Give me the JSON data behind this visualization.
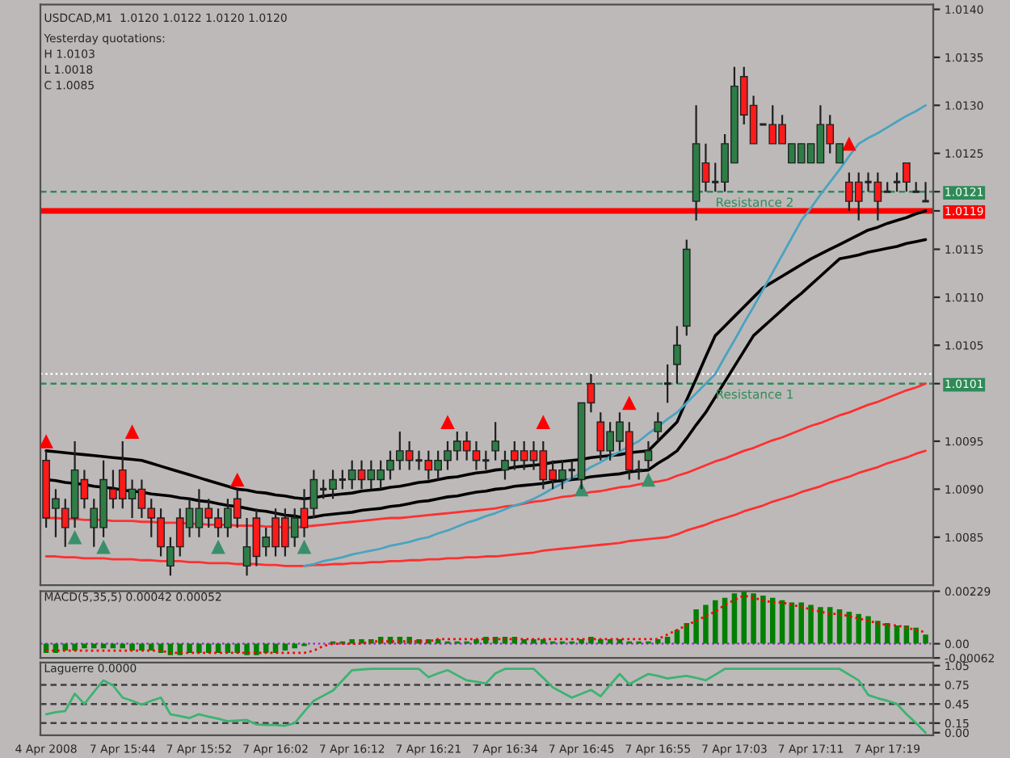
{
  "chart_data": [
    {
      "type": "candlestick",
      "title": "USDCAD,M1  1.0120 1.0122 1.0120 1.0120",
      "annotations": [
        "Yesterday quotations:",
        "H 1.0103",
        "L 1.0018",
        "C 1.0085"
      ],
      "categories": [
        null,
        null,
        null,
        null,
        null,
        null,
        null,
        null,
        null,
        null,
        null,
        null,
        null,
        null,
        null,
        null,
        null,
        null,
        null,
        null,
        null,
        null,
        null,
        null,
        null,
        null,
        null,
        null,
        null,
        null,
        null,
        null,
        null,
        null,
        null,
        null,
        null,
        null,
        null,
        null,
        null,
        null,
        null,
        null,
        null,
        null,
        null,
        null,
        null,
        null,
        null,
        null,
        null,
        null,
        null,
        null,
        null,
        null,
        null,
        null,
        null,
        null,
        null,
        null,
        null,
        null,
        null,
        null,
        null,
        null,
        null,
        null,
        null,
        null,
        null,
        null,
        null,
        null,
        null,
        null,
        null,
        null,
        null,
        null,
        null,
        null,
        null,
        null,
        null,
        null,
        null,
        null,
        null
      ],
      "ohlc": [
        [
          1.0093,
          1.0094,
          1.0086,
          1.0087
        ],
        [
          1.0088,
          1.009,
          1.0085,
          1.0089
        ],
        [
          1.0088,
          1.0089,
          1.0084,
          1.0086
        ],
        [
          1.0087,
          1.0095,
          1.0086,
          1.0092
        ],
        [
          1.0091,
          1.0092,
          1.0088,
          1.0089
        ],
        [
          1.0086,
          1.0089,
          1.0084,
          1.0088
        ],
        [
          1.0086,
          1.0093,
          1.0085,
          1.0091
        ],
        [
          1.009,
          1.0092,
          1.0088,
          1.0089
        ],
        [
          1.0092,
          1.0095,
          1.0088,
          1.0089
        ],
        [
          1.0089,
          1.0091,
          1.0087,
          1.009
        ],
        [
          1.009,
          1.0091,
          1.0087,
          1.0088
        ],
        [
          1.0088,
          1.0089,
          1.0085,
          1.0087
        ],
        [
          1.0087,
          1.0088,
          1.0083,
          1.0084
        ],
        [
          1.0082,
          1.0085,
          1.0081,
          1.0084
        ],
        [
          1.0087,
          1.0088,
          1.0083,
          1.0084
        ],
        [
          1.0086,
          1.0089,
          1.0085,
          1.0088
        ],
        [
          1.0086,
          1.009,
          1.0085,
          1.0088
        ],
        [
          1.0088,
          1.0089,
          1.0086,
          1.0087
        ],
        [
          1.0087,
          1.0088,
          1.0085,
          1.0086
        ],
        [
          1.0086,
          1.0089,
          1.0085,
          1.0088
        ],
        [
          1.0089,
          1.009,
          1.0086,
          1.0087
        ],
        [
          1.0082,
          1.0087,
          1.0081,
          1.0084
        ],
        [
          1.0087,
          1.0088,
          1.0082,
          1.0083
        ],
        [
          1.0084,
          1.0086,
          1.0083,
          1.0085
        ],
        [
          1.0087,
          1.0088,
          1.0083,
          1.0084
        ],
        [
          1.0087,
          1.0088,
          1.0083,
          1.0084
        ],
        [
          1.0085,
          1.0088,
          1.0084,
          1.0087
        ],
        [
          1.0088,
          1.009,
          1.0085,
          1.0086
        ],
        [
          1.0088,
          1.0092,
          1.0087,
          1.0091
        ],
        [
          1.009,
          1.0091,
          1.0089,
          1.009
        ],
        [
          1.009,
          1.0092,
          1.0089,
          1.0091
        ],
        [
          1.0091,
          1.0092,
          1.009,
          1.0091
        ],
        [
          1.0091,
          1.0093,
          1.009,
          1.0092
        ],
        [
          1.0092,
          1.0093,
          1.009,
          1.0091
        ],
        [
          1.0091,
          1.0093,
          1.009,
          1.0092
        ],
        [
          1.0091,
          1.0093,
          1.009,
          1.0092
        ],
        [
          1.0092,
          1.0094,
          1.0091,
          1.0093
        ],
        [
          1.0093,
          1.0096,
          1.0092,
          1.0094
        ],
        [
          1.0094,
          1.0095,
          1.0092,
          1.0093
        ],
        [
          1.0093,
          1.0094,
          1.0092,
          1.0093
        ],
        [
          1.0093,
          1.0094,
          1.0091,
          1.0092
        ],
        [
          1.0092,
          1.0094,
          1.0091,
          1.0093
        ],
        [
          1.0093,
          1.0095,
          1.0092,
          1.0094
        ],
        [
          1.0094,
          1.0096,
          1.0093,
          1.0095
        ],
        [
          1.0095,
          1.0096,
          1.0093,
          1.0094
        ],
        [
          1.0094,
          1.0095,
          1.0092,
          1.0093
        ],
        [
          1.0093,
          1.0094,
          1.0092,
          1.0093
        ],
        [
          1.0094,
          1.0097,
          1.0093,
          1.0095
        ],
        [
          1.0092,
          1.0094,
          1.0091,
          1.0093
        ],
        [
          1.0094,
          1.0095,
          1.0092,
          1.0093
        ],
        [
          1.0094,
          1.0095,
          1.0092,
          1.0093
        ],
        [
          1.0094,
          1.0095,
          1.0092,
          1.0093
        ],
        [
          1.0094,
          1.0095,
          1.009,
          1.0091
        ],
        [
          1.0092,
          1.0093,
          1.009,
          1.0091
        ],
        [
          1.0091,
          1.0093,
          1.009,
          1.0092
        ],
        [
          1.0092,
          1.0093,
          1.0091,
          1.0092
        ],
        [
          1.0091,
          1.0099,
          1.009,
          1.0099
        ],
        [
          1.0101,
          1.0102,
          1.0098,
          1.0099
        ],
        [
          1.0097,
          1.0098,
          1.0093,
          1.0094
        ],
        [
          1.0094,
          1.0097,
          1.0093,
          1.0096
        ],
        [
          1.0095,
          1.0098,
          1.0094,
          1.0097
        ],
        [
          1.0096,
          1.0097,
          1.0091,
          1.0092
        ],
        [
          1.0092,
          1.0093,
          1.0091,
          1.0092
        ],
        [
          1.0093,
          1.0095,
          1.0092,
          1.0094
        ],
        [
          1.0096,
          1.0098,
          1.0095,
          1.0097
        ],
        [
          1.0101,
          1.0103,
          1.0099,
          1.0101
        ],
        [
          1.0103,
          1.0107,
          1.0101,
          1.0105
        ],
        [
          1.0107,
          1.0116,
          1.0106,
          1.0115
        ],
        [
          1.012,
          1.013,
          1.0118,
          1.0126
        ],
        [
          1.0124,
          1.0126,
          1.0121,
          1.0122
        ],
        [
          1.0122,
          1.0124,
          1.0121,
          1.0122
        ],
        [
          1.0122,
          1.0127,
          1.0121,
          1.0126
        ],
        [
          1.0124,
          1.0134,
          1.0124,
          1.0132
        ],
        [
          1.0133,
          1.0134,
          1.0128,
          1.0129
        ],
        [
          1.013,
          1.0131,
          1.0126,
          1.0126
        ],
        [
          1.0128,
          1.0128,
          1.0128,
          1.0128
        ],
        [
          1.0128,
          1.013,
          1.0126,
          1.0126
        ],
        [
          1.0128,
          1.0129,
          1.0126,
          1.0126
        ],
        [
          1.0124,
          1.0126,
          1.0124,
          1.0126
        ],
        [
          1.0124,
          1.0126,
          1.0124,
          1.0126
        ],
        [
          1.0124,
          1.0126,
          1.0124,
          1.0126
        ],
        [
          1.0124,
          1.013,
          1.0124,
          1.0128
        ],
        [
          1.0128,
          1.0129,
          1.0125,
          1.0126
        ],
        [
          1.0124,
          1.0126,
          1.0124,
          1.0126
        ],
        [
          1.0122,
          1.0123,
          1.0119,
          1.012
        ],
        [
          1.0122,
          1.0123,
          1.0118,
          1.012
        ],
        [
          1.0122,
          1.0123,
          1.0121,
          1.0122
        ],
        [
          1.0122,
          1.0123,
          1.0118,
          1.012
        ],
        [
          1.0121,
          1.0122,
          1.0121,
          1.0121
        ],
        [
          1.0122,
          1.0123,
          1.0121,
          1.0122
        ],
        [
          1.0124,
          1.0124,
          1.0121,
          1.0122
        ],
        [
          1.0121,
          1.0122,
          1.0121,
          1.0121
        ],
        [
          1.012,
          1.0122,
          1.012,
          1.012
        ]
      ],
      "series": [
        {
          "type": "line",
          "color": "#ff3030",
          "values": [
            1.0083,
            1.0083,
            1.00829,
            1.00829,
            1.00828,
            1.00828,
            1.00828,
            1.00827,
            1.00827,
            1.00827,
            1.00826,
            1.00826,
            1.00825,
            1.00825,
            1.00825,
            1.00824,
            1.00824,
            1.00823,
            1.00823,
            1.00823,
            1.00822,
            1.00822,
            1.00822,
            1.00821,
            1.00821,
            1.0082,
            1.0082,
            1.0082,
            1.00821,
            1.00821,
            1.00822,
            1.00822,
            1.00823,
            1.00823,
            1.00824,
            1.00824,
            1.00825,
            1.00825,
            1.00826,
            1.00826,
            1.00827,
            1.00827,
            1.00828,
            1.00828,
            1.00829,
            1.00829,
            1.0083,
            1.0083,
            1.00831,
            1.00832,
            1.00833,
            1.00834,
            1.00836,
            1.00837,
            1.00838,
            1.00839,
            1.0084,
            1.00841,
            1.00842,
            1.00843,
            1.00844,
            1.00846,
            1.00847,
            1.00848,
            1.00849,
            1.0085,
            1.00853,
            1.00857,
            1.0086,
            1.00863,
            1.00867,
            1.0087,
            1.00873,
            1.00877,
            1.0088,
            1.00883,
            1.00887,
            1.0089,
            1.00893,
            1.00897,
            1.009,
            1.00903,
            1.00907,
            1.0091,
            1.00913,
            1.00917,
            1.0092,
            1.00923,
            1.00927,
            1.0093,
            1.00933,
            1.00937,
            1.0094
          ]
        },
        {
          "type": "line",
          "color": "#ff3030",
          "values": [
            1.0087,
            1.0087,
            1.00869,
            1.00869,
            1.00868,
            1.00868,
            1.00868,
            1.00867,
            1.00867,
            1.00867,
            1.00866,
            1.00866,
            1.00865,
            1.00865,
            1.00865,
            1.00864,
            1.00864,
            1.00863,
            1.00863,
            1.00863,
            1.00862,
            1.00862,
            1.00862,
            1.00861,
            1.00861,
            1.0086,
            1.0086,
            1.00861,
            1.00862,
            1.00863,
            1.00864,
            1.00865,
            1.00866,
            1.00867,
            1.00868,
            1.00869,
            1.0087,
            1.0087,
            1.00871,
            1.00872,
            1.00873,
            1.00874,
            1.00875,
            1.00876,
            1.00877,
            1.00878,
            1.00879,
            1.0088,
            1.00882,
            1.00883,
            1.00885,
            1.00887,
            1.00888,
            1.0089,
            1.00892,
            1.00893,
            1.00895,
            1.00897,
            1.00898,
            1.009,
            1.00902,
            1.00903,
            1.00905,
            1.00907,
            1.00908,
            1.0091,
            1.00914,
            1.00917,
            1.00921,
            1.00925,
            1.00929,
            1.00932,
            1.00936,
            1.0094,
            1.00943,
            1.00947,
            1.00951,
            1.00954,
            1.00958,
            1.00962,
            1.00966,
            1.00969,
            1.00973,
            1.00977,
            1.0098,
            1.00984,
            1.00988,
            1.00991,
            1.00995,
            1.00999,
            1.01003,
            1.01006,
            1.0101
          ]
        },
        {
          "type": "line",
          "color": "#000000",
          "values": [
            1.0091,
            1.00909,
            1.00907,
            1.00906,
            1.00905,
            1.00903,
            1.00902,
            1.00901,
            1.00899,
            1.00898,
            1.00897,
            1.00895,
            1.00894,
            1.00893,
            1.00891,
            1.0089,
            1.00888,
            1.00887,
            1.00885,
            1.00883,
            1.00882,
            1.0088,
            1.00878,
            1.00877,
            1.00875,
            1.00873,
            1.00872,
            1.0087,
            1.00871,
            1.00873,
            1.00874,
            1.00875,
            1.00876,
            1.00878,
            1.00879,
            1.0088,
            1.00882,
            1.00883,
            1.00885,
            1.00887,
            1.00888,
            1.0089,
            1.00892,
            1.00893,
            1.00895,
            1.00897,
            1.00898,
            1.009,
            1.00901,
            1.00903,
            1.00904,
            1.00905,
            1.00906,
            1.00908,
            1.00909,
            1.0091,
            1.00911,
            1.00913,
            1.00914,
            1.00915,
            1.00916,
            1.00918,
            1.00919,
            1.0092,
            1.00927,
            1.00933,
            1.0094,
            1.00953,
            1.00967,
            1.0098,
            1.00996,
            1.01012,
            1.01028,
            1.01044,
            1.0106,
            1.01069,
            1.01078,
            1.01087,
            1.01096,
            1.01104,
            1.01113,
            1.01122,
            1.01131,
            1.0114,
            1.01142,
            1.01144,
            1.01147,
            1.01149,
            1.01151,
            1.01153,
            1.01156,
            1.01158,
            1.0116
          ]
        },
        {
          "type": "line",
          "color": "#000000",
          "values": [
            1.0094,
            1.00939,
            1.00938,
            1.00937,
            1.00936,
            1.00935,
            1.00934,
            1.00933,
            1.00932,
            1.00931,
            1.0093,
            1.00927,
            1.00924,
            1.00921,
            1.00918,
            1.00915,
            1.00912,
            1.00909,
            1.00906,
            1.00903,
            1.009,
            1.00899,
            1.00897,
            1.00896,
            1.00894,
            1.00893,
            1.00891,
            1.0089,
            1.00891,
            1.00893,
            1.00894,
            1.00895,
            1.00896,
            1.00898,
            1.00899,
            1.009,
            1.00902,
            1.00903,
            1.00905,
            1.00907,
            1.00908,
            1.0091,
            1.00912,
            1.00913,
            1.00915,
            1.00917,
            1.00918,
            1.0092,
            1.00921,
            1.00923,
            1.00924,
            1.00925,
            1.00926,
            1.00928,
            1.00929,
            1.0093,
            1.00931,
            1.00933,
            1.00934,
            1.00935,
            1.00936,
            1.00938,
            1.00939,
            1.0094,
            1.0095,
            1.0096,
            1.0097,
            1.00993,
            1.01015,
            1.01038,
            1.0106,
            1.0107,
            1.0108,
            1.0109,
            1.011,
            1.0111,
            1.01116,
            1.01122,
            1.01128,
            1.01134,
            1.0114,
            1.01145,
            1.0115,
            1.01155,
            1.0116,
            1.01165,
            1.0117,
            1.01173,
            1.01177,
            1.0118,
            1.01183,
            1.01187,
            1.0119
          ]
        },
        {
          "type": "line",
          "color": "#4aa3c0",
          "values": [
            null,
            null,
            null,
            null,
            null,
            null,
            null,
            null,
            null,
            null,
            null,
            null,
            null,
            null,
            null,
            null,
            null,
            null,
            null,
            null,
            null,
            null,
            null,
            null,
            null,
            null,
            null,
            1.0082,
            1.00822,
            1.00825,
            1.00827,
            1.00829,
            1.00832,
            1.00834,
            1.00836,
            1.00838,
            1.00841,
            1.00843,
            1.00845,
            1.00848,
            1.0085,
            1.00854,
            1.00857,
            1.00861,
            1.00865,
            1.00868,
            1.00872,
            1.00875,
            1.00879,
            1.00883,
            1.00886,
            1.0089,
            1.00895,
            1.00901,
            1.00906,
            1.00912,
            1.00917,
            1.00923,
            1.00928,
            1.00934,
            1.00939,
            1.00945,
            1.0095,
            1.00958,
            1.00965,
            1.00973,
            1.0098,
            1.0099,
            1.01,
            1.0101,
            1.0102,
            1.01038,
            1.01055,
            1.01073,
            1.0109,
            1.01108,
            1.01126,
            1.01144,
            1.01162,
            1.0118,
            1.01193,
            1.01207,
            1.0122,
            1.01233,
            1.01247,
            1.0126,
            1.01266,
            1.01271,
            1.01277,
            1.01283,
            1.01289,
            1.01294,
            1.013
          ]
        },
        {
          "type": "scatter",
          "color": "#ff0000",
          "marker": "triangle",
          "values": [
            1.0095,
            null,
            null,
            null,
            null,
            null,
            null,
            null,
            null,
            1.0096,
            null,
            null,
            null,
            null,
            null,
            null,
            null,
            null,
            null,
            null,
            1.0091,
            null,
            null,
            null,
            null,
            null,
            null,
            null,
            null,
            null,
            null,
            null,
            null,
            null,
            null,
            null,
            null,
            null,
            null,
            null,
            null,
            null,
            1.0097,
            null,
            null,
            null,
            null,
            null,
            null,
            null,
            null,
            null,
            1.0097,
            null,
            null,
            null,
            null,
            null,
            null,
            null,
            null,
            1.0099,
            null,
            null,
            null,
            null,
            null,
            null,
            null,
            null,
            null,
            null,
            null,
            null,
            null,
            null,
            null,
            null,
            null,
            null,
            null,
            null,
            null,
            null,
            1.0126,
            null,
            null,
            null,
            null,
            null,
            null,
            null,
            null
          ]
        },
        {
          "type": "scatter",
          "color": "#3a8f6a",
          "marker": "triangle",
          "values": [
            null,
            null,
            null,
            1.0085,
            null,
            null,
            1.0084,
            null,
            null,
            null,
            null,
            null,
            null,
            null,
            null,
            null,
            null,
            null,
            1.0084,
            null,
            null,
            null,
            null,
            null,
            null,
            null,
            null,
            1.0084,
            null,
            null,
            null,
            null,
            null,
            null,
            null,
            null,
            null,
            null,
            null,
            null,
            null,
            null,
            null,
            null,
            null,
            null,
            null,
            null,
            null,
            null,
            null,
            null,
            null,
            null,
            null,
            null,
            1.009,
            null,
            null,
            null,
            null,
            null,
            null,
            1.0091,
            null,
            null,
            null,
            null,
            null,
            null,
            null,
            null,
            null,
            null,
            null,
            null,
            null,
            null,
            null,
            null,
            null,
            null,
            null,
            null,
            null,
            null,
            null,
            null,
            null,
            null,
            null,
            null,
            null
          ]
        }
      ],
      "ref_lines": [
        {
          "axis": "y",
          "value": 1.0102,
          "color": "#ffffff",
          "line_style": "dotted"
        },
        {
          "axis": "y",
          "value": 1.0121,
          "label": "Resistance 2",
          "color": "#2e8b57",
          "line_style": "dashed"
        },
        {
          "axis": "y",
          "value": 1.0101,
          "label": "Resistance 1",
          "color": "#2e8b57",
          "line_style": "dashed"
        },
        {
          "axis": "y",
          "value": 1.0119,
          "color": "#ff0000",
          "line_style": "solid"
        }
      ],
      "ylim": [
        1.008,
        1.01405
      ],
      "yticks": [
        1.0085,
        {
          "value": 1.009,
          "label": "1.0090"
        },
        1.0095,
        1.0105,
        {
          "value": 1.011,
          "label": "1.0110"
        },
        1.0115,
        1.0125,
        {
          "value": 1.013,
          "label": "1.0130"
        },
        1.0135,
        {
          "value": 1.014,
          "label": "1.0140"
        },
        1.0121,
        1.0119,
        1.0101
      ],
      "tick_labels": "y"
    },
    {
      "type": "bar",
      "title": "MACD(5,35,5) 0.00042 0.00052",
      "categories": [
        null,
        null,
        null,
        null,
        null,
        null,
        null,
        null,
        null,
        null,
        null,
        null,
        null,
        null,
        null,
        null,
        null,
        null,
        null,
        null,
        null,
        null,
        null,
        null,
        null,
        null,
        null,
        null,
        null,
        null,
        null,
        null,
        null,
        null,
        null,
        null,
        null,
        null,
        null,
        null,
        null,
        null,
        null,
        null,
        null,
        null,
        null,
        null,
        null,
        null,
        null,
        null,
        null,
        null,
        null,
        null,
        null,
        null,
        null,
        null,
        null,
        null,
        null,
        null,
        null,
        null,
        null,
        null,
        null,
        null,
        null,
        null,
        null,
        null,
        null,
        null,
        null,
        null,
        null,
        null,
        null,
        null,
        null,
        null,
        null,
        null,
        null,
        null,
        null,
        null,
        null,
        null,
        null
      ],
      "series": [
        {
          "type": "bar",
          "color": "#008000",
          "values": [
            -0.0004,
            -0.0004,
            -0.0003,
            -0.0003,
            -0.0002,
            -0.0002,
            -0.0002,
            -0.0002,
            -0.0002,
            -0.0003,
            -0.0003,
            -0.0003,
            -0.0004,
            -0.0005,
            -0.0005,
            -0.0004,
            -0.0004,
            -0.0004,
            -0.0004,
            -0.0004,
            -0.0004,
            -0.0005,
            -0.0005,
            -0.0004,
            -0.0004,
            -0.0003,
            -0.0002,
            -0.0001,
            0.0,
            0.0,
            0.0001,
            0.0001,
            0.0002,
            0.0002,
            0.0002,
            0.0003,
            0.0003,
            0.0003,
            0.0003,
            0.0002,
            0.0002,
            0.0002,
            0.0001,
            0.0001,
            0.0001,
            0.0002,
            0.0003,
            0.0003,
            0.0003,
            0.0003,
            0.0002,
            0.0002,
            0.0002,
            0.0001,
            0.0001,
            0.0001,
            0.0002,
            0.0003,
            0.0002,
            0.0002,
            0.0002,
            0.0001,
            0.0001,
            0.0001,
            0.0002,
            0.0003,
            0.0006,
            0.0009,
            0.0015,
            0.0017,
            0.0019,
            0.002,
            0.0022,
            0.00229,
            0.0022,
            0.0021,
            0.002,
            0.0019,
            0.0018,
            0.0018,
            0.0017,
            0.0016,
            0.0016,
            0.0015,
            0.0014,
            0.0013,
            0.0012,
            0.001,
            0.0009,
            0.0008,
            0.0008,
            0.0007,
            0.0004
          ]
        },
        {
          "type": "line",
          "color": "#ff0000",
          "line_style": "dotted",
          "values": [
            -0.0003,
            -0.0003,
            -0.0003,
            -0.0003,
            -0.0003,
            -0.0003,
            -0.0003,
            -0.0003,
            -0.0003,
            -0.0003,
            -0.0003,
            -0.0003,
            -0.0003,
            -0.0004,
            -0.0004,
            -0.0004,
            -0.0004,
            -0.0004,
            -0.0004,
            -0.0004,
            -0.0004,
            -0.0004,
            -0.0004,
            -0.0004,
            -0.0004,
            -0.0004,
            -0.0004,
            -0.0004,
            -0.0003,
            -0.0001,
            0.0,
            0.0,
            0.0,
            0.0,
            0.0001,
            0.0001,
            0.0001,
            0.0001,
            0.0001,
            0.0001,
            0.0001,
            0.0002,
            0.0002,
            0.0002,
            0.0002,
            0.0002,
            0.0002,
            0.0002,
            0.0002,
            0.0002,
            0.0002,
            0.0002,
            0.0002,
            0.0002,
            0.0002,
            0.0002,
            0.0002,
            0.0002,
            0.0002,
            0.0002,
            0.0002,
            0.0002,
            0.0002,
            0.0002,
            0.0002,
            0.0004,
            0.0006,
            0.0008,
            0.001,
            0.0012,
            0.0014,
            0.0017,
            0.0019,
            0.0021,
            0.002,
            0.0019,
            0.0018,
            0.0018,
            0.0017,
            0.0016,
            0.0015,
            0.0014,
            0.0013,
            0.0013,
            0.0012,
            0.0011,
            0.001,
            0.0009,
            0.0008,
            0.0008,
            0.0007,
            0.0006,
            0.0005
          ]
        }
      ],
      "ref_lines": [
        {
          "axis": "y",
          "value": 0,
          "color": "#9933cc",
          "line_style": "dotted"
        }
      ],
      "ylim": [
        -0.00062,
        0.00229
      ],
      "yticks": [
        0.00229,
        {
          "value": 0,
          "label": "0.00"
        },
        -0.00062
      ],
      "tick_labels": "y"
    },
    {
      "type": "line",
      "title": "Laguerre 0.0000",
      "categories": [
        "4 Apr 2008",
        null,
        null,
        null,
        null,
        null,
        null,
        null,
        "7 Apr 15:44",
        null,
        null,
        null,
        null,
        null,
        null,
        null,
        "7 Apr 15:52",
        null,
        null,
        null,
        null,
        null,
        null,
        null,
        "7 Apr 16:02",
        null,
        null,
        null,
        null,
        null,
        null,
        null,
        "7 Apr 16:12",
        null,
        null,
        null,
        null,
        null,
        null,
        null,
        "7 Apr 16:21",
        null,
        null,
        null,
        null,
        null,
        null,
        null,
        "7 Apr 16:34",
        null,
        null,
        null,
        null,
        null,
        null,
        null,
        "7 Apr 16:45",
        null,
        null,
        null,
        null,
        null,
        null,
        null,
        "7 Apr 16:55",
        null,
        null,
        null,
        null,
        null,
        null,
        null,
        "7 Apr 17:03",
        null,
        null,
        null,
        null,
        null,
        null,
        null,
        "7 Apr 17:11",
        null,
        null,
        null,
        null,
        null,
        null,
        null,
        "7 Apr 17:19",
        null,
        null,
        null,
        null
      ],
      "series": [
        {
          "type": "line",
          "color": "#3cb371",
          "values": [
            0.29,
            0.32,
            0.34,
            0.61,
            0.45,
            0.64,
            0.82,
            0.74,
            0.55,
            0.5,
            0.44,
            0.5,
            0.55,
            0.29,
            0.26,
            0.23,
            0.29,
            0.25,
            0.22,
            0.18,
            0.19,
            0.2,
            0.13,
            0.12,
            0.12,
            0.11,
            0.15,
            0.33,
            0.5,
            0.58,
            0.66,
            0.82,
            0.98,
            0.99,
            1.0,
            1.0,
            1.0,
            1.0,
            1.0,
            1.0,
            0.87,
            0.93,
            0.98,
            0.9,
            0.82,
            0.8,
            0.77,
            0.93,
            1.0,
            1.0,
            1.0,
            1.0,
            0.86,
            0.71,
            0.63,
            0.55,
            0.61,
            0.67,
            0.57,
            0.75,
            0.92,
            0.76,
            0.84,
            0.92,
            0.89,
            0.85,
            0.87,
            0.89,
            0.86,
            0.82,
            0.91,
            1.0,
            1.0,
            1.0,
            1.0,
            1.0,
            1.0,
            1.0,
            1.0,
            1.0,
            1.0,
            1.0,
            1.0,
            1.0,
            0.91,
            0.82,
            0.59,
            0.54,
            0.5,
            0.45,
            0.29,
            0.15,
            0.0
          ]
        }
      ],
      "ref_lines": [
        {
          "axis": "y",
          "value": 0.75,
          "color": "#404040",
          "line_style": "dashed"
        },
        {
          "axis": "y",
          "value": 0.45,
          "color": "#404040",
          "line_style": "dashed"
        },
        {
          "axis": "y",
          "value": 0.15,
          "color": "#404040",
          "line_style": "dashed"
        }
      ],
      "ylim": [
        -0.04,
        1.1
      ],
      "yticks": [
        1.05,
        0.75,
        0.45,
        0.15,
        {
          "value": 0,
          "label": "0.00"
        }
      ]
    }
  ]
}
